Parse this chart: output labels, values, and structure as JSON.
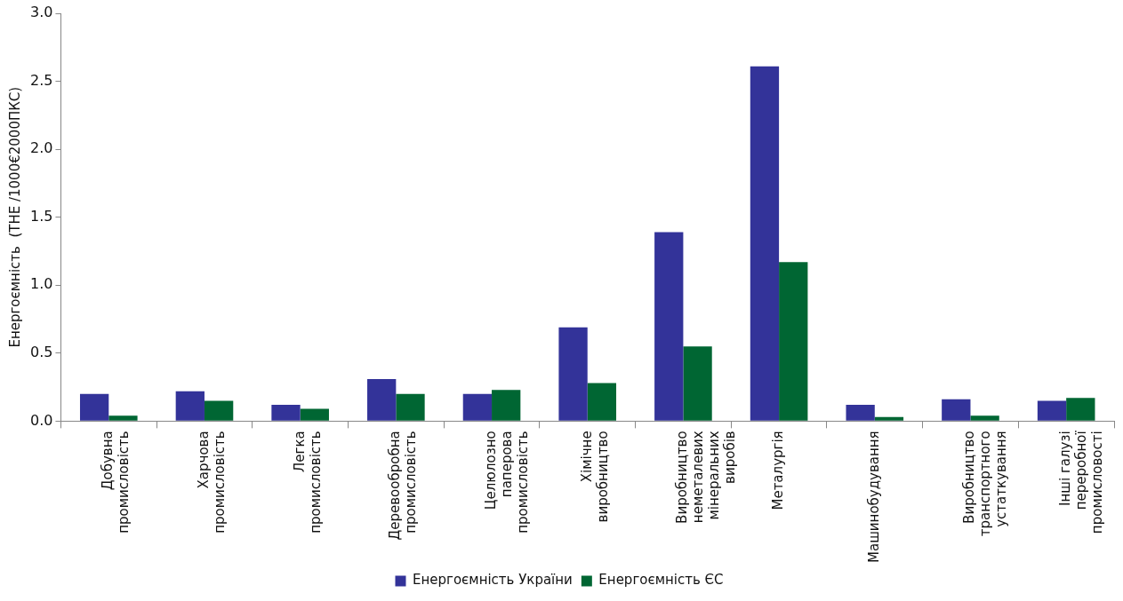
{
  "chart_data": {
    "type": "bar",
    "ylabel": "Енергоємність  (ТНЕ /1000€2000ПКС)",
    "categories": [
      "Добувна\nпромисловість",
      "Харчова\nпромисловість",
      "Легка\nпромисловість",
      "Деревообробна\nпромисловість",
      "Целюлозно\nпаперова\nпромисловість",
      "Хімічне\nвиробництво",
      "Виробництво\nнеметалевих\nмінеральних\nвиробів",
      "Металургія",
      "Машинобудування",
      "Виробництво\nтранспортного\nустаткування",
      "Інші галузі\nпереробної\nпромисловості"
    ],
    "series": [
      {
        "name": "Енергоємність України",
        "color": "#333399",
        "values": [
          0.2,
          0.22,
          0.12,
          0.31,
          0.2,
          0.69,
          1.39,
          2.61,
          0.12,
          0.16,
          0.15
        ]
      },
      {
        "name": "Енергоємність ЄС",
        "color": "#006633",
        "values": [
          0.04,
          0.15,
          0.09,
          0.2,
          0.23,
          0.28,
          0.55,
          1.17,
          0.03,
          0.04,
          0.17
        ]
      }
    ],
    "ylim": [
      0,
      3
    ],
    "yticks": [
      {
        "value": 0,
        "label": "0.0"
      },
      {
        "value": 0.5,
        "label": "0.5"
      },
      {
        "value": 1,
        "label": "1.0"
      },
      {
        "value": 1.5,
        "label": "1.5"
      },
      {
        "value": 2,
        "label": "2.0"
      },
      {
        "value": 2.5,
        "label": "2.5"
      },
      {
        "value": 3,
        "label": "3.0"
      }
    ],
    "grid": false,
    "legend": "bottom"
  }
}
